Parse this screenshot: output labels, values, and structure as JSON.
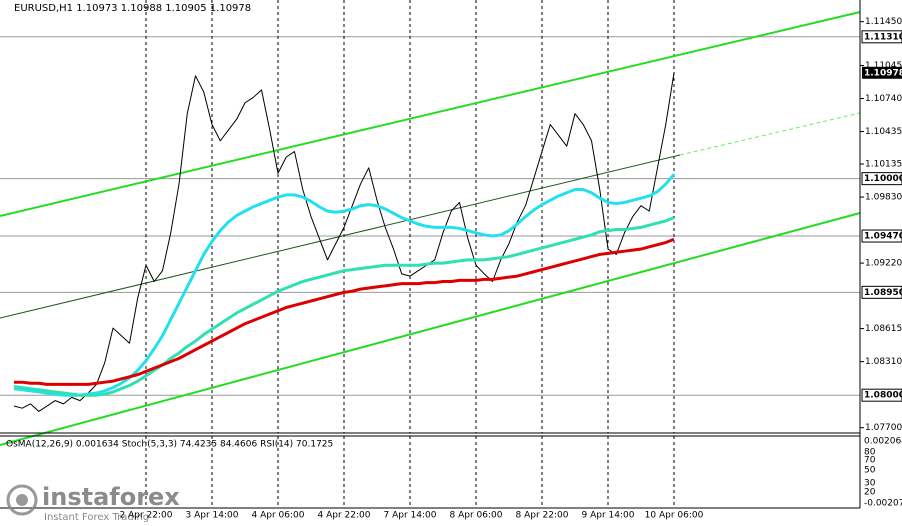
{
  "chart_data": {
    "type": "line",
    "title": "EURUSD,H1  1.10973 1.10988 1.10905 1.10978",
    "categories": [
      null,
      null,
      null,
      null,
      null,
      null,
      null,
      null,
      null,
      null,
      null,
      null,
      null,
      null,
      null,
      null,
      "2 Apr 22:00",
      null,
      null,
      null,
      null,
      null,
      null,
      null,
      "3 Apr 14:00",
      null,
      null,
      null,
      null,
      null,
      null,
      null,
      "4 Apr 06:00",
      null,
      null,
      null,
      null,
      null,
      null,
      null,
      "4 Apr 22:00",
      null,
      null,
      null,
      null,
      null,
      null,
      null,
      "7 Apr 14:00",
      null,
      null,
      null,
      null,
      null,
      null,
      null,
      "8 Apr 06:00",
      null,
      null,
      null,
      null,
      null,
      null,
      null,
      "8 Apr 22:00",
      null,
      null,
      null,
      null,
      null,
      null,
      null,
      "9 Apr 14:00",
      null,
      null,
      null,
      null,
      null,
      null,
      null,
      "10 Apr 06:00"
    ],
    "series": [
      {
        "name": "EURUSD",
        "color": "#000000",
        "width": 1,
        "values": [
          1.079,
          1.0788,
          1.0792,
          1.0785,
          1.079,
          1.0795,
          1.0792,
          1.0798,
          1.0795,
          1.0802,
          1.081,
          1.083,
          1.0862,
          1.0855,
          1.0848,
          1.089,
          1.092,
          1.0905,
          1.0915,
          1.095,
          1.0995,
          1.106,
          1.1095,
          1.108,
          1.105,
          1.1035,
          1.1045,
          1.1055,
          1.107,
          1.1075,
          1.1082,
          1.1045,
          1.1005,
          1.102,
          1.1025,
          1.099,
          1.0965,
          1.0945,
          1.0925,
          1.094,
          1.0955,
          1.0975,
          1.0995,
          1.101,
          1.098,
          1.0955,
          1.0935,
          1.0912,
          1.091,
          1.0915,
          1.092,
          1.0925,
          1.095,
          1.097,
          1.0978,
          1.0945,
          1.092,
          1.0912,
          1.0905,
          1.0925,
          1.094,
          1.096,
          1.0975,
          1.1,
          1.1025,
          1.105,
          1.104,
          1.103,
          1.106,
          1.105,
          1.1035,
          1.099,
          1.0935,
          1.093,
          1.095,
          1.0965,
          1.0975,
          1.097,
          1.101,
          1.105,
          1.10978
        ]
      },
      {
        "color": "#22e0f0",
        "width": 3,
        "values": [
          1.0806,
          1.0805,
          1.0804,
          1.0803,
          1.0802,
          1.0801,
          1.08,
          1.08,
          1.08,
          1.0801,
          1.0802,
          1.0804,
          1.0807,
          1.0811,
          1.0816,
          1.0823,
          1.0832,
          1.0843,
          1.0855,
          1.087,
          1.0885,
          1.09,
          1.0915,
          1.093,
          1.0942,
          1.0952,
          1.096,
          1.0966,
          1.097,
          1.0974,
          1.0977,
          1.098,
          1.0983,
          1.0985,
          1.0985,
          1.0983,
          1.0979,
          1.0974,
          1.097,
          1.0969,
          1.097,
          1.0972,
          1.0975,
          1.0976,
          1.0975,
          1.0972,
          1.0968,
          1.0964,
          1.0961,
          1.0958,
          1.0956,
          1.0955,
          1.0955,
          1.0955,
          1.0954,
          1.0952,
          1.095,
          1.0948,
          1.0947,
          1.0948,
          1.0952,
          1.0958,
          1.0965,
          1.0971,
          1.0976,
          1.098,
          1.0984,
          1.0987,
          1.099,
          1.099,
          1.0987,
          1.0982,
          1.0978,
          1.0977,
          1.0978,
          1.098,
          1.0982,
          1.0984,
          1.0988,
          1.0995,
          1.1004
        ]
      },
      {
        "color": "#2fe0b0",
        "width": 3,
        "values": [
          1.0808,
          1.0807,
          1.0806,
          1.0805,
          1.0804,
          1.0803,
          1.0802,
          1.0801,
          1.08,
          1.08,
          1.08,
          1.0801,
          1.0803,
          1.0806,
          1.0809,
          1.0813,
          1.0818,
          1.0823,
          1.0828,
          1.0834,
          1.0839,
          1.0845,
          1.085,
          1.0856,
          1.0861,
          1.0866,
          1.0871,
          1.0876,
          1.088,
          1.0884,
          1.0888,
          1.0892,
          1.0896,
          1.0899,
          1.0902,
          1.0905,
          1.0907,
          1.0909,
          1.0911,
          1.0913,
          1.0915,
          1.0916,
          1.0917,
          1.0918,
          1.0919,
          1.092,
          1.092,
          1.092,
          1.092,
          1.092,
          1.0921,
          1.0922,
          1.0922,
          1.0923,
          1.0924,
          1.0925,
          1.0925,
          1.0925,
          1.0926,
          1.0927,
          1.0928,
          1.093,
          1.0932,
          1.0934,
          1.0936,
          1.0938,
          1.094,
          1.0942,
          1.0944,
          1.0946,
          1.0948,
          1.0951,
          1.0952,
          1.0953,
          1.0953,
          1.0954,
          1.0955,
          1.0957,
          1.0959,
          1.0961,
          1.0964
        ]
      },
      {
        "color": "#dd0000",
        "width": 3,
        "values": [
          1.0812,
          1.0812,
          1.0811,
          1.0811,
          1.081,
          1.081,
          1.081,
          1.081,
          1.081,
          1.081,
          1.0811,
          1.0812,
          1.0813,
          1.0815,
          1.0817,
          1.0819,
          1.0822,
          1.0825,
          1.0828,
          1.0831,
          1.0834,
          1.0838,
          1.0842,
          1.0846,
          1.085,
          1.0854,
          1.0858,
          1.0862,
          1.0866,
          1.0869,
          1.0872,
          1.0875,
          1.0878,
          1.0881,
          1.0883,
          1.0885,
          1.0887,
          1.0889,
          1.0891,
          1.0893,
          1.0895,
          1.0896,
          1.0898,
          1.0899,
          1.09,
          1.0901,
          1.0902,
          1.0903,
          1.0903,
          1.0903,
          1.0904,
          1.0904,
          1.0905,
          1.0905,
          1.0906,
          1.0906,
          1.0906,
          1.0907,
          1.0907,
          1.0908,
          1.0909,
          1.091,
          1.0912,
          1.0914,
          1.0916,
          1.0918,
          1.092,
          1.0922,
          1.0924,
          1.0926,
          1.0928,
          1.093,
          1.0931,
          1.0932,
          1.0933,
          1.0934,
          1.0935,
          1.0937,
          1.0939,
          1.0941,
          1.0944
        ]
      }
    ],
    "ylim": [
      1.0766,
      1.1165
    ],
    "yticks": [
      {
        "value": 1.1145,
        "label": "1.11450"
      },
      1.11045,
      {
        "value": 1.1074,
        "label": "1.10740"
      },
      1.10435,
      1.10135,
      {
        "value": 1.0983,
        "label": "1.09830"
      },
      {
        "value": 1.0922,
        "label": "1.09220"
      },
      1.08615,
      {
        "value": 1.0831,
        "label": "1.08310"
      },
      {
        "value": 1.077,
        "label": "1.07700"
      }
    ],
    "levels": [
      {
        "value": 1.1131,
        "label": "1.11310"
      },
      {
        "value": 1.1,
        "label": "1.10000"
      },
      {
        "value": 1.0947,
        "label": "1.09470"
      },
      {
        "value": 1.0895,
        "label": "1.08950"
      },
      {
        "value": 1.08,
        "label": "1.08000"
      }
    ],
    "last_price": 1.10978,
    "grid": true,
    "indicator": {
      "header": "OsMA(12,26,9) 0.001634  Stoch(5,3,3) 74.4235 84.4606  RSI(14) 70.1725",
      "axis_labels": [
        "0.002064",
        "80",
        "70",
        "50",
        "30",
        "20",
        "-0.00207"
      ]
    },
    "watermark": {
      "brand": "instaforex",
      "tagline": "Instant Forex Trading"
    }
  }
}
